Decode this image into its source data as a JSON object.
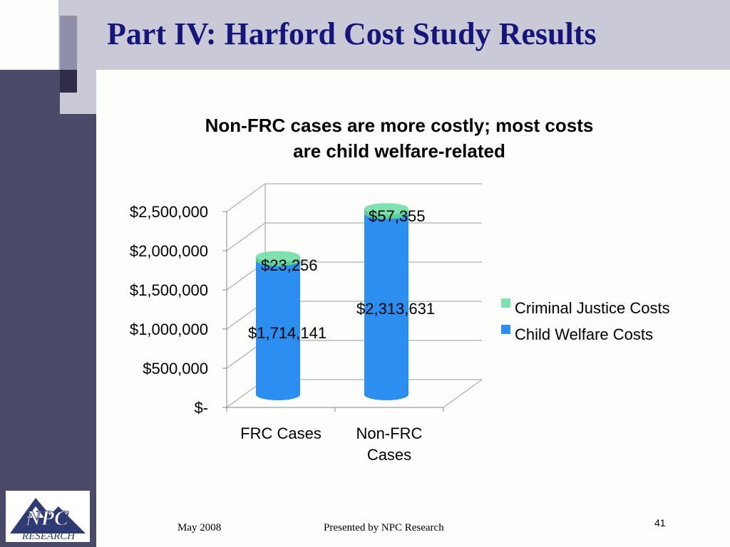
{
  "slide": {
    "title": "Part IV: Harford Cost Study Results",
    "footer_date": "May 2008",
    "footer_presenter": "Presented by NPC Research",
    "page_number": "41",
    "logo_text": "NPC RESEARCH",
    "colors": {
      "title": "#15157a",
      "sidebar": "#4a4a68"
    }
  },
  "chart_data": {
    "type": "bar",
    "stacked": true,
    "title_lines": [
      "Non-FRC cases are more costly; most costs",
      "are child welfare-related"
    ],
    "categories": [
      [
        "FRC Cases"
      ],
      [
        "Non-FRC",
        "Cases"
      ]
    ],
    "series": [
      {
        "name": "Child Welfare Costs",
        "values": [
          1714141,
          2313631
        ],
        "labels": [
          "$1,714,141",
          "$2,313,631"
        ],
        "color": "#2b8ef0"
      },
      {
        "name": "Criminal Justice Costs",
        "values": [
          23256,
          57355
        ],
        "labels": [
          "$23,256",
          "$57,355"
        ],
        "color": "#7fe0b0"
      }
    ],
    "ylim": [
      0,
      2500000
    ],
    "yticks": [
      0,
      500000,
      1000000,
      1500000,
      2000000,
      2500000
    ],
    "ytick_labels": [
      "$-",
      "$500,000",
      "$1,000,000",
      "$1,500,000",
      "$2,000,000",
      "$2,500,000"
    ],
    "legend_order": [
      "Criminal Justice Costs",
      "Child Welfare Costs"
    ],
    "legend_position": "right",
    "grid": true
  }
}
